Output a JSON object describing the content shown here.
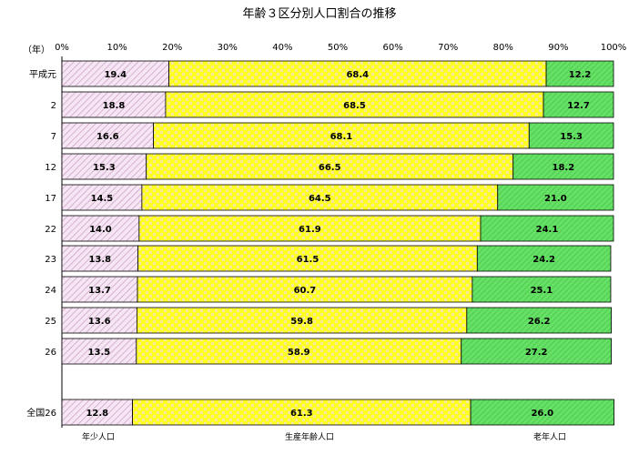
{
  "chart_data": {
    "type": "bar",
    "stacked": "percent",
    "orientation": "horizontal",
    "title": "年齢３区分別人口割合の推移",
    "year_label": "（年）",
    "xlim": [
      0,
      100
    ],
    "x_ticks": [
      "0%",
      "10%",
      "20%",
      "30%",
      "40%",
      "50%",
      "60%",
      "70%",
      "80%",
      "90%",
      "100%"
    ],
    "categories": [
      "平成元",
      "2",
      "7",
      "12",
      "17",
      "22",
      "23",
      "24",
      "25",
      "26",
      "全国26"
    ],
    "series": [
      {
        "name": "年少人口",
        "values": [
          19.4,
          18.8,
          16.6,
          15.3,
          14.5,
          14.0,
          13.8,
          13.7,
          13.6,
          13.5,
          12.8
        ],
        "labels": [
          "19.4",
          "18.8",
          "16.6",
          "15.3",
          "14.5",
          "14.0",
          "13.8",
          "13.7",
          "13.6",
          "13.5",
          "12.8"
        ],
        "color": "#f3ddf0",
        "stroke": "#c9a6c4"
      },
      {
        "name": "生産年齢人口",
        "values": [
          68.4,
          68.5,
          68.1,
          66.5,
          64.5,
          61.9,
          61.5,
          60.7,
          59.8,
          58.9,
          61.3
        ],
        "labels": [
          "68.4",
          "68.5",
          "68.1",
          "66.5",
          "64.5",
          "61.9",
          "61.5",
          "60.7",
          "59.8",
          "58.9",
          "61.3"
        ],
        "color": "#ffff33",
        "stroke": "#e0d94a"
      },
      {
        "name": "老年人口",
        "values": [
          12.2,
          12.7,
          15.3,
          18.2,
          21.0,
          24.1,
          24.2,
          25.1,
          26.2,
          27.2,
          26.0
        ],
        "labels": [
          "12.2",
          "12.7",
          "15.3",
          "18.2",
          "21.0",
          "24.1",
          "24.2",
          "25.1",
          "26.2",
          "27.2",
          "26.0"
        ],
        "color": "#66e066",
        "stroke": "#3a9a3a"
      }
    ],
    "legend": "bottom"
  }
}
